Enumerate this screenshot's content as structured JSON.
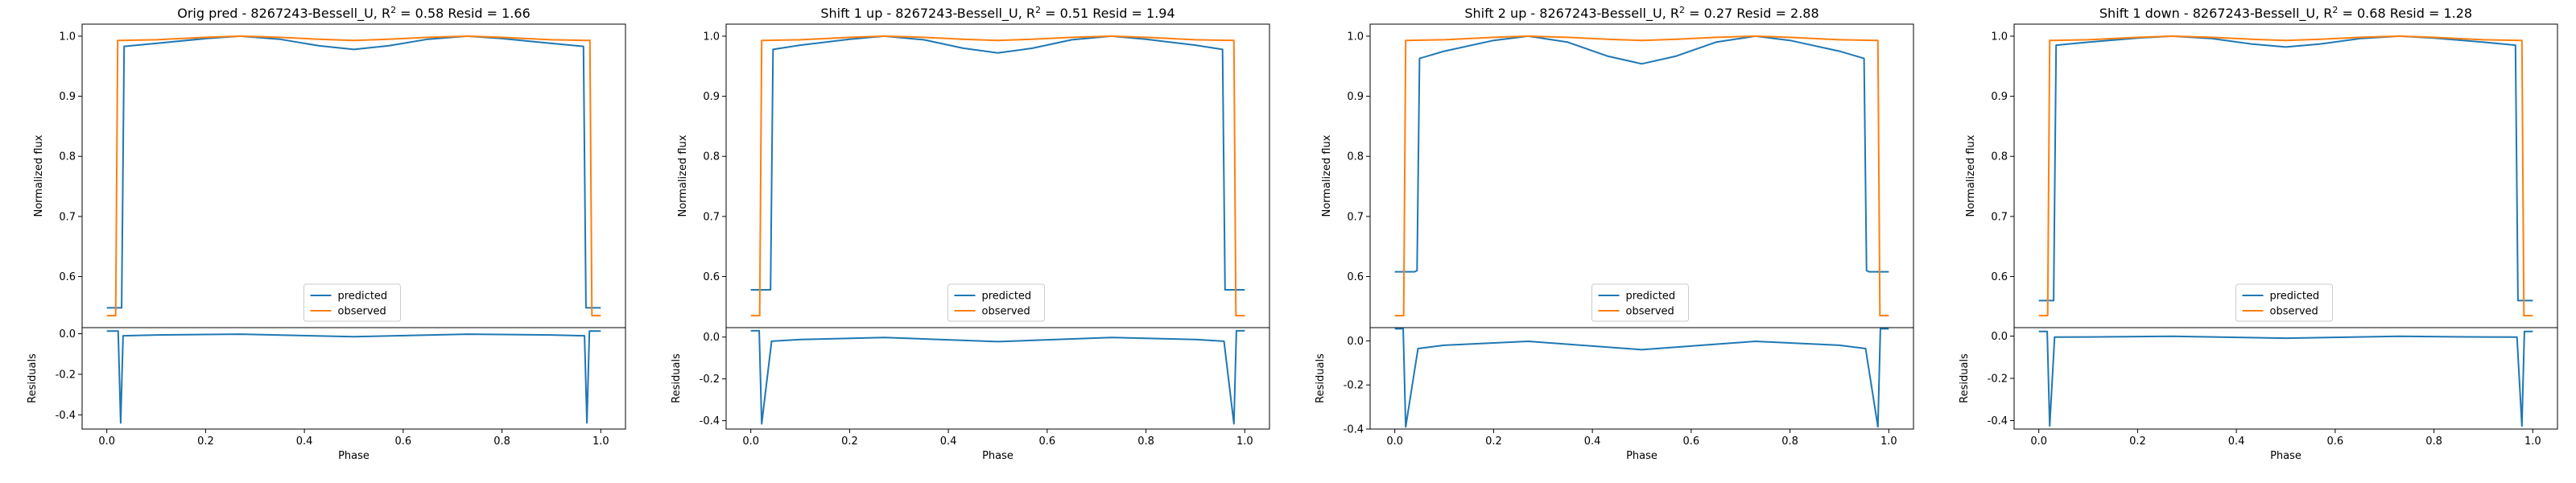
{
  "chart_data": [
    {
      "type": "line",
      "title": "Orig pred - 8267243-Bessell_U, $R^2 = 0.58$ Resid = 1.66",
      "title_text": "Orig pred - 8267243-Bessell_U, R",
      "title_sup": "2",
      "title_tail": " = 0.58 Resid = 1.66",
      "ylabel": "Normalized flux",
      "xlabel": "Phase",
      "residual_ylabel": "Residuals",
      "xlim": [
        -0.05,
        1.05
      ],
      "ylim": [
        0.515,
        1.02
      ],
      "yticks": [
        "0.6",
        "0.7",
        "0.8",
        "0.9",
        "1.0"
      ],
      "residual_ylim": [
        -0.47,
        0.03
      ],
      "residual_yticks": [
        "-0.4",
        "-0.2",
        "0.0"
      ],
      "xticks": [
        "0.0",
        "0.2",
        "0.4",
        "0.6",
        "0.8",
        "1.0"
      ],
      "legend": {
        "placement": "lower center",
        "entries": [
          "predicted",
          "observed"
        ]
      },
      "series": [
        {
          "name": "predicted",
          "color": "#1f77b4",
          "x": [
            0.0,
            0.025,
            0.03,
            0.035,
            0.1,
            0.2,
            0.27,
            0.35,
            0.43,
            0.5,
            0.57,
            0.65,
            0.73,
            0.8,
            0.9,
            0.965,
            0.97,
            0.975,
            1.0
          ],
          "y": [
            0.548,
            0.548,
            0.548,
            0.983,
            0.988,
            0.996,
            1.0,
            0.995,
            0.984,
            0.978,
            0.984,
            0.995,
            1.0,
            0.996,
            0.988,
            0.983,
            0.548,
            0.548,
            0.548
          ]
        },
        {
          "name": "observed",
          "color": "#ff7f0e",
          "x": [
            0.0,
            0.018,
            0.022,
            0.1,
            0.2,
            0.27,
            0.35,
            0.43,
            0.5,
            0.57,
            0.65,
            0.73,
            0.8,
            0.9,
            0.978,
            0.982,
            1.0
          ],
          "y": [
            0.535,
            0.535,
            0.993,
            0.994,
            0.998,
            1.0,
            0.998,
            0.995,
            0.993,
            0.995,
            0.998,
            1.0,
            0.998,
            0.994,
            0.993,
            0.535,
            0.535
          ]
        }
      ],
      "residuals": {
        "x": [
          0.0,
          0.023,
          0.028,
          0.033,
          0.1,
          0.27,
          0.5,
          0.73,
          0.9,
          0.967,
          0.972,
          0.977,
          1.0
        ],
        "y": [
          0.013,
          0.013,
          -0.44,
          -0.01,
          -0.006,
          -0.002,
          -0.015,
          -0.002,
          -0.006,
          -0.01,
          -0.44,
          0.013,
          0.013
        ]
      }
    },
    {
      "type": "line",
      "title": "Shift 1 up - 8267243-Bessell_U, $R^2 = 0.51$ Resid = 1.94",
      "title_text": "Shift 1 up - 8267243-Bessell_U, R",
      "title_sup": "2",
      "title_tail": " = 0.51 Resid = 1.94",
      "ylabel": "Normalized flux",
      "xlabel": "Phase",
      "residual_ylabel": "Residuals",
      "xlim": [
        -0.05,
        1.05
      ],
      "ylim": [
        0.515,
        1.02
      ],
      "yticks": [
        "0.6",
        "0.7",
        "0.8",
        "0.9",
        "1.0"
      ],
      "residual_ylim": [
        -0.44,
        0.045
      ],
      "residual_yticks": [
        "-0.4",
        "-0.2",
        "0.0"
      ],
      "xticks": [
        "0.0",
        "0.2",
        "0.4",
        "0.6",
        "0.8",
        "1.0"
      ],
      "legend": {
        "placement": "lower center",
        "entries": [
          "predicted",
          "observed"
        ]
      },
      "series": [
        {
          "name": "predicted",
          "color": "#1f77b4",
          "x": [
            0.0,
            0.035,
            0.04,
            0.045,
            0.1,
            0.2,
            0.27,
            0.35,
            0.43,
            0.5,
            0.57,
            0.65,
            0.73,
            0.8,
            0.9,
            0.955,
            0.96,
            0.965,
            1.0
          ],
          "y": [
            0.578,
            0.578,
            0.578,
            0.978,
            0.985,
            0.995,
            1.0,
            0.994,
            0.98,
            0.972,
            0.98,
            0.994,
            1.0,
            0.995,
            0.985,
            0.978,
            0.578,
            0.578,
            0.578
          ]
        },
        {
          "name": "observed",
          "color": "#ff7f0e",
          "x": [
            0.0,
            0.018,
            0.022,
            0.1,
            0.2,
            0.27,
            0.35,
            0.43,
            0.5,
            0.57,
            0.65,
            0.73,
            0.8,
            0.9,
            0.978,
            0.982,
            1.0
          ],
          "y": [
            0.535,
            0.535,
            0.993,
            0.994,
            0.998,
            1.0,
            0.998,
            0.995,
            0.993,
            0.995,
            0.998,
            1.0,
            0.998,
            0.994,
            0.993,
            0.535,
            0.535
          ]
        }
      ],
      "residuals": {
        "x": [
          0.0,
          0.017,
          0.022,
          0.042,
          0.1,
          0.27,
          0.5,
          0.73,
          0.9,
          0.958,
          0.978,
          0.983,
          1.0
        ],
        "y": [
          0.03,
          0.03,
          -0.415,
          -0.02,
          -0.012,
          -0.002,
          -0.022,
          -0.002,
          -0.012,
          -0.02,
          -0.415,
          0.03,
          0.03
        ]
      }
    },
    {
      "type": "line",
      "title": "Shift 2 up - 8267243-Bessell_U, $R^2 = 0.27$ Resid = 2.88",
      "title_text": "Shift 2 up - 8267243-Bessell_U, R",
      "title_sup": "2",
      "title_tail": " = 0.27 Resid = 2.88",
      "ylabel": "Normalized flux",
      "xlabel": "Phase",
      "residual_ylabel": "Residuals",
      "xlim": [
        -0.05,
        1.05
      ],
      "ylim": [
        0.515,
        1.02
      ],
      "yticks": [
        "0.6",
        "0.7",
        "0.8",
        "0.9",
        "1.0"
      ],
      "residual_ylim": [
        -0.4,
        0.06
      ],
      "residual_yticks": [
        "-0.4",
        "-0.2",
        "0.0"
      ],
      "xticks": [
        "0.0",
        "0.2",
        "0.4",
        "0.6",
        "0.8",
        "1.0"
      ],
      "legend": {
        "placement": "lower center",
        "entries": [
          "predicted",
          "observed"
        ]
      },
      "series": [
        {
          "name": "predicted",
          "color": "#1f77b4",
          "x": [
            0.0,
            0.04,
            0.045,
            0.05,
            0.1,
            0.2,
            0.27,
            0.35,
            0.43,
            0.5,
            0.57,
            0.65,
            0.73,
            0.8,
            0.9,
            0.95,
            0.955,
            0.96,
            1.0
          ],
          "y": [
            0.608,
            0.608,
            0.61,
            0.963,
            0.975,
            0.993,
            1.0,
            0.99,
            0.967,
            0.954,
            0.967,
            0.99,
            1.0,
            0.993,
            0.975,
            0.963,
            0.61,
            0.608,
            0.608
          ]
        },
        {
          "name": "observed",
          "color": "#ff7f0e",
          "x": [
            0.0,
            0.018,
            0.022,
            0.1,
            0.2,
            0.27,
            0.35,
            0.43,
            0.5,
            0.57,
            0.65,
            0.73,
            0.8,
            0.9,
            0.978,
            0.982,
            1.0
          ],
          "y": [
            0.535,
            0.535,
            0.993,
            0.994,
            0.998,
            1.0,
            0.998,
            0.995,
            0.993,
            0.995,
            0.998,
            1.0,
            0.998,
            0.994,
            0.993,
            0.535,
            0.535
          ]
        }
      ],
      "residuals": {
        "x": [
          0.0,
          0.017,
          0.022,
          0.047,
          0.1,
          0.27,
          0.5,
          0.73,
          0.9,
          0.953,
          0.978,
          0.983,
          1.0
        ],
        "y": [
          0.055,
          0.055,
          -0.39,
          -0.035,
          -0.02,
          -0.002,
          -0.04,
          -0.002,
          -0.02,
          -0.035,
          -0.39,
          0.055,
          0.055
        ]
      }
    },
    {
      "type": "line",
      "title": "Shift 1 down - 8267243-Bessell_U, $R^2 = 0.68$ Resid = 1.28",
      "title_text": "Shift 1 down - 8267243-Bessell_U, R",
      "title_sup": "2",
      "title_tail": " = 0.68 Resid = 1.28",
      "ylabel": "Normalized flux",
      "xlabel": "Phase",
      "residual_ylabel": "Residuals",
      "xlim": [
        -0.05,
        1.05
      ],
      "ylim": [
        0.515,
        1.02
      ],
      "yticks": [
        "0.6",
        "0.7",
        "0.8",
        "0.9",
        "1.0"
      ],
      "residual_ylim": [
        -0.44,
        0.04
      ],
      "residual_yticks": [
        "-0.4",
        "-0.2",
        "0.0"
      ],
      "xticks": [
        "0.0",
        "0.2",
        "0.4",
        "0.6",
        "0.8",
        "1.0"
      ],
      "legend": {
        "placement": "lower center",
        "entries": [
          "predicted",
          "observed"
        ]
      },
      "series": [
        {
          "name": "predicted",
          "color": "#1f77b4",
          "x": [
            0.0,
            0.025,
            0.03,
            0.035,
            0.1,
            0.2,
            0.27,
            0.35,
            0.43,
            0.5,
            0.57,
            0.65,
            0.73,
            0.8,
            0.9,
            0.965,
            0.97,
            0.975,
            1.0
          ],
          "y": [
            0.56,
            0.56,
            0.56,
            0.985,
            0.99,
            0.997,
            1.0,
            0.996,
            0.987,
            0.982,
            0.987,
            0.996,
            1.0,
            0.997,
            0.99,
            0.985,
            0.56,
            0.56,
            0.56
          ]
        },
        {
          "name": "observed",
          "color": "#ff7f0e",
          "x": [
            0.0,
            0.018,
            0.022,
            0.1,
            0.2,
            0.27,
            0.35,
            0.43,
            0.5,
            0.57,
            0.65,
            0.73,
            0.8,
            0.9,
            0.978,
            0.982,
            1.0
          ],
          "y": [
            0.535,
            0.535,
            0.993,
            0.994,
            0.998,
            1.0,
            0.998,
            0.995,
            0.993,
            0.995,
            0.998,
            1.0,
            0.998,
            0.994,
            0.993,
            0.535,
            0.535
          ]
        }
      ],
      "residuals": {
        "x": [
          0.0,
          0.017,
          0.022,
          0.032,
          0.1,
          0.27,
          0.5,
          0.73,
          0.9,
          0.968,
          0.978,
          0.983,
          1.0
        ],
        "y": [
          0.022,
          0.022,
          -0.425,
          -0.005,
          -0.004,
          -0.001,
          -0.01,
          -0.001,
          -0.004,
          -0.005,
          -0.425,
          0.022,
          0.022
        ]
      }
    }
  ]
}
